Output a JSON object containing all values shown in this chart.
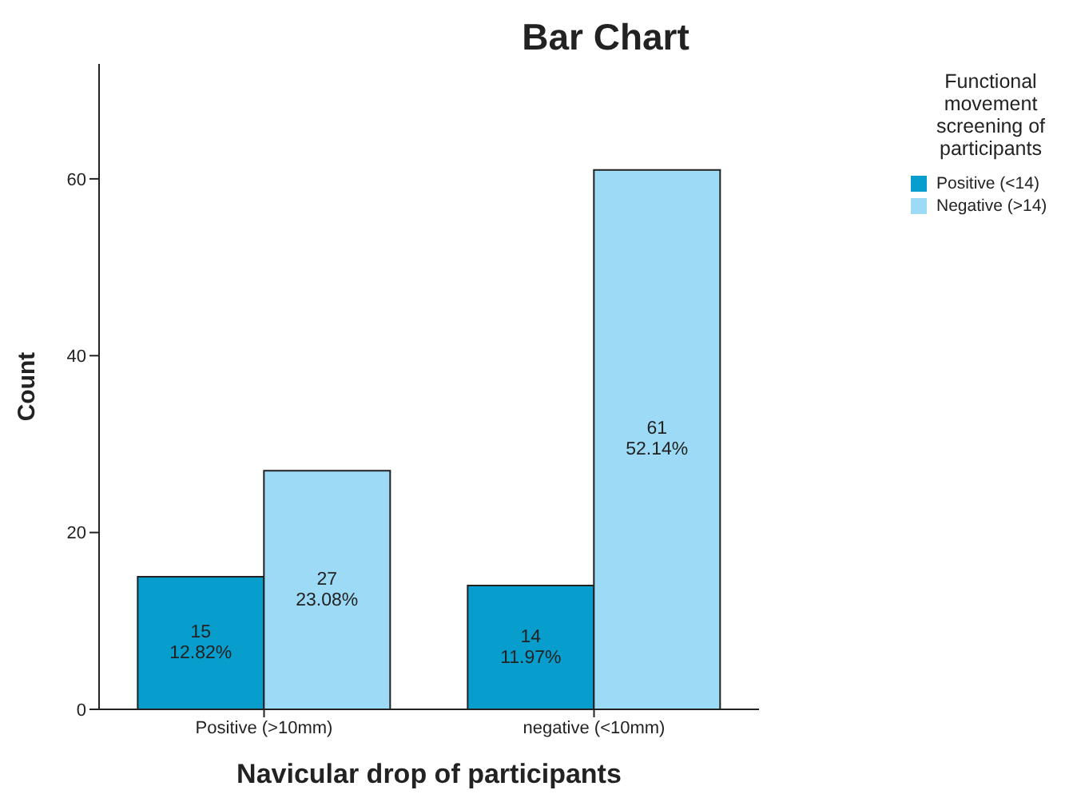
{
  "chart_data": {
    "type": "bar",
    "title": "Bar Chart",
    "xlabel": "Navicular drop of participants",
    "ylabel": "Count",
    "legend_title": "Functional movement screening of participants",
    "categories": [
      "Positive (>10mm)",
      "negative (<10mm)"
    ],
    "series": [
      {
        "name": "Positive (<14)",
        "color": "#079dcc",
        "values": [
          15,
          14
        ],
        "value_labels": [
          "15\n12.82%",
          "14\n11.97%"
        ]
      },
      {
        "name": "Negative (>14)",
        "color": "#9ddaf5",
        "values": [
          27,
          61
        ],
        "value_labels": [
          "27\n23.08%",
          "61\n52.14%"
        ]
      }
    ],
    "ylim": [
      0,
      73
    ],
    "yticks": [
      0,
      20,
      40,
      60
    ],
    "legend": "top right"
  }
}
